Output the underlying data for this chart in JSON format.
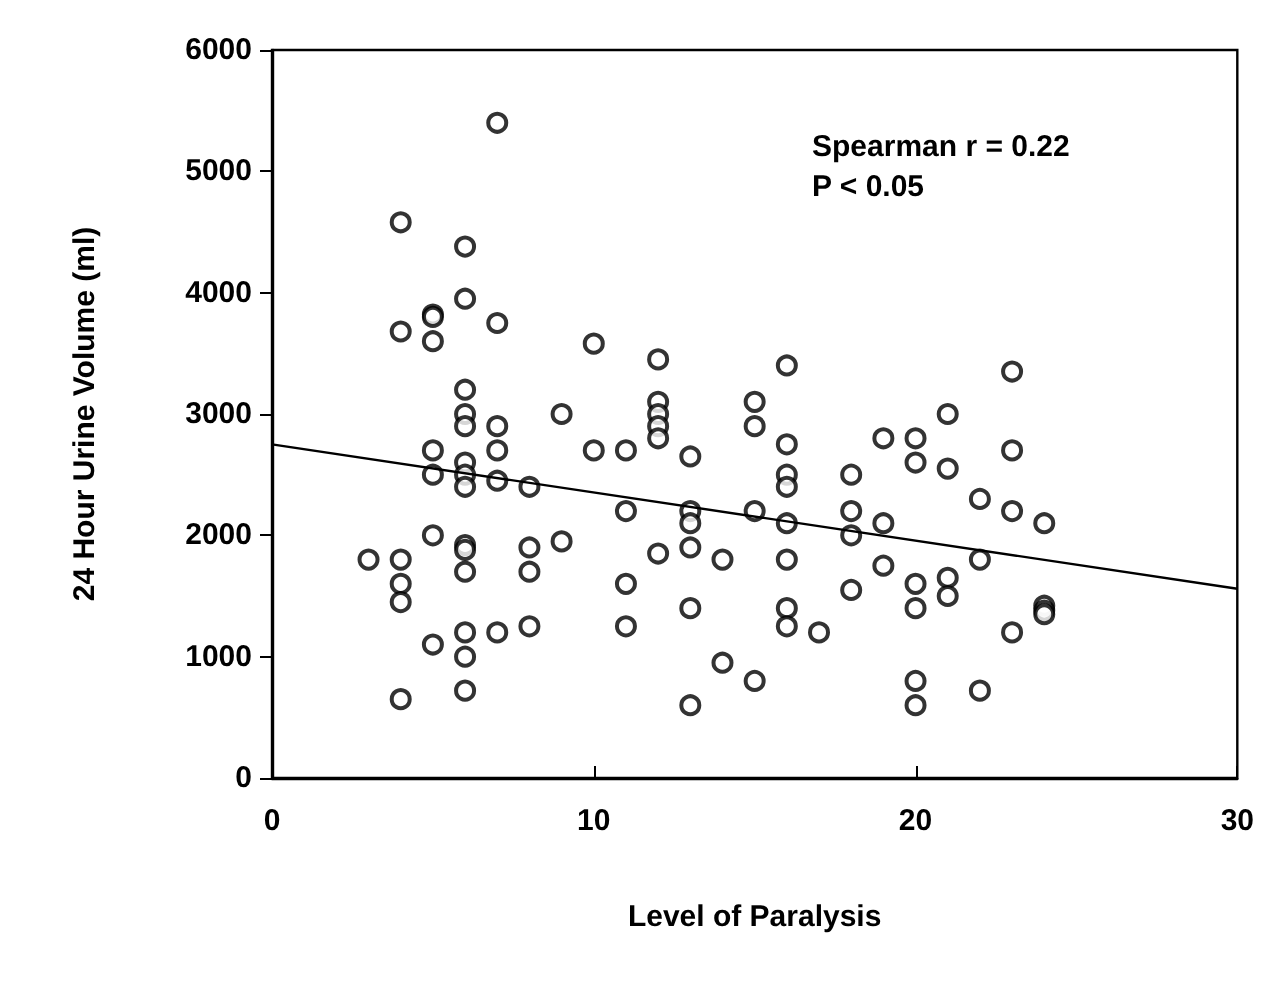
{
  "chart_data": {
    "type": "scatter",
    "xlabel": "Level of Paralysis",
    "ylabel": "24 Hour Urine Volume (ml)",
    "xlim": [
      0,
      30
    ],
    "xticks": [
      0,
      10,
      20,
      30
    ],
    "ylim": [
      0,
      6000
    ],
    "yticks": [
      0,
      1000,
      2000,
      3000,
      4000,
      5000,
      6000
    ],
    "grid": false,
    "marker": "circle",
    "annotations": [
      "Spearman r = 0.22",
      "P < 0.05"
    ],
    "series": [
      {
        "color": "#000000",
        "x": [
          3,
          4,
          4,
          4,
          4,
          4,
          4,
          5,
          5,
          5,
          5,
          5,
          5,
          5,
          6,
          6,
          6,
          6,
          6,
          6,
          6,
          6,
          6,
          6,
          6,
          6,
          6,
          6,
          7,
          7,
          7,
          7,
          7,
          7,
          8,
          8,
          8,
          8,
          9,
          9,
          10,
          10,
          11,
          11,
          11,
          11,
          12,
          12,
          12,
          12,
          12,
          12,
          13,
          13,
          13,
          13,
          13,
          13,
          14,
          14,
          15,
          15,
          15,
          15,
          16,
          16,
          16,
          16,
          16,
          16,
          16,
          16,
          17,
          18,
          18,
          18,
          18,
          19,
          19,
          19,
          20,
          20,
          20,
          20,
          20,
          20,
          21,
          21,
          21,
          21,
          22,
          22,
          22,
          23,
          23,
          23,
          23,
          24,
          24,
          24,
          24
        ],
        "values": [
          1800,
          4580,
          3680,
          1800,
          1600,
          1450,
          650,
          3820,
          3800,
          3600,
          2700,
          2500,
          2000,
          1100,
          4380,
          3950,
          3200,
          3000,
          2900,
          2600,
          2500,
          2400,
          1920,
          1880,
          1700,
          1200,
          1000,
          720,
          5400,
          3750,
          2900,
          2700,
          2450,
          1200,
          2400,
          1900,
          1700,
          1250,
          3000,
          1950,
          3580,
          2700,
          2700,
          2200,
          1600,
          1250,
          3450,
          3100,
          3000,
          2900,
          2800,
          1850,
          2650,
          2200,
          2100,
          1900,
          1400,
          600,
          1800,
          950,
          3100,
          2900,
          2200,
          800,
          3400,
          2750,
          2500,
          2400,
          2100,
          1800,
          1400,
          1250,
          1200,
          2500,
          2200,
          2000,
          1550,
          2800,
          2100,
          1750,
          2800,
          2600,
          1600,
          1400,
          800,
          600,
          3000,
          2550,
          1650,
          1500,
          2300,
          1800,
          720,
          3350,
          2700,
          2200,
          1200,
          2100,
          1420,
          1380,
          1350
        ]
      },
      {
        "type": "line",
        "color": "#000000",
        "marker": "none",
        "line_style": "solid",
        "x": [
          0,
          30
        ],
        "values": [
          2750,
          1560
        ]
      }
    ]
  }
}
